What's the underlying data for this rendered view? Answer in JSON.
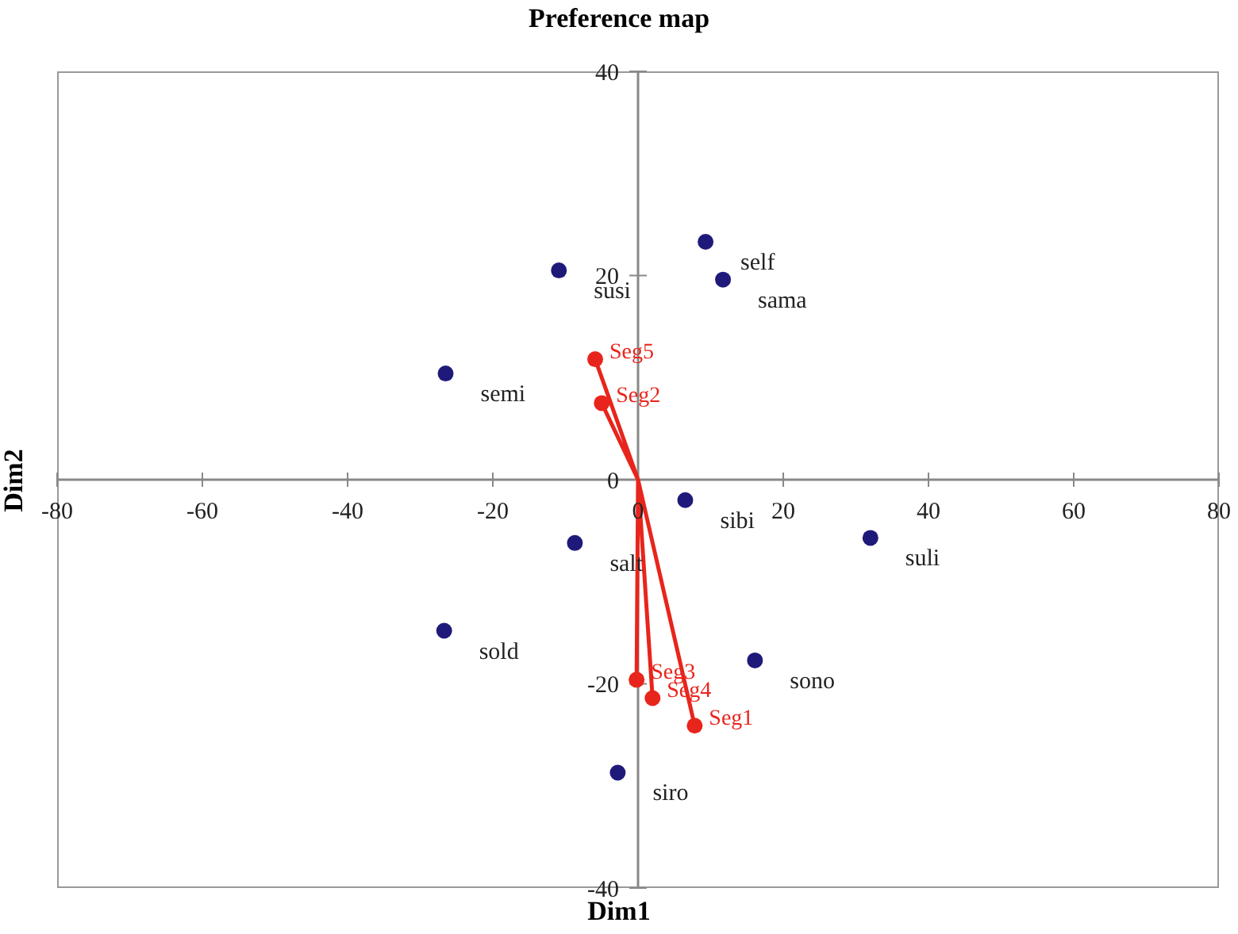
{
  "chart_data": {
    "type": "scatter",
    "title": "Preference map",
    "xlabel": "Dim1",
    "ylabel": "Dim2",
    "xlim": [
      -80,
      80
    ],
    "xticks": [
      -80,
      -60,
      -40,
      -20,
      0,
      20,
      40,
      60,
      80
    ],
    "ylim": [
      -40,
      40
    ],
    "yticks": [
      -40,
      -20,
      0,
      20,
      40
    ],
    "grid": false,
    "legend": false,
    "marker": "circle",
    "series": [
      {
        "color": "#1f1a7a",
        "x": [
          9.3,
          11.7,
          -10.9,
          -26.5,
          6.5,
          32,
          -8.7,
          -26.7,
          16.1,
          -2.8
        ],
        "values": [
          23.3,
          19.6,
          20.5,
          10.4,
          -2.0,
          -5.7,
          -6.2,
          -14.8,
          -17.7,
          -28.7
        ],
        "value_labels": [
          "self",
          "sama",
          "susi",
          "semi",
          "sibi",
          "suli",
          "salt",
          "sold",
          "sono",
          "siro"
        ]
      },
      {
        "type": "line",
        "color": "#e8251c",
        "x": [
          0,
          7.8,
          0,
          -5.0,
          0,
          -0.2,
          0,
          2.0,
          0,
          -5.9
        ],
        "values": [
          0,
          -24.1,
          0,
          7.5,
          0,
          -19.6,
          0,
          -21.4,
          0,
          11.8
        ],
        "value_labels": [
          null,
          "Seg1",
          null,
          "Seg2",
          null,
          "Seg3",
          null,
          "Seg4",
          null,
          "Seg5"
        ]
      }
    ]
  }
}
